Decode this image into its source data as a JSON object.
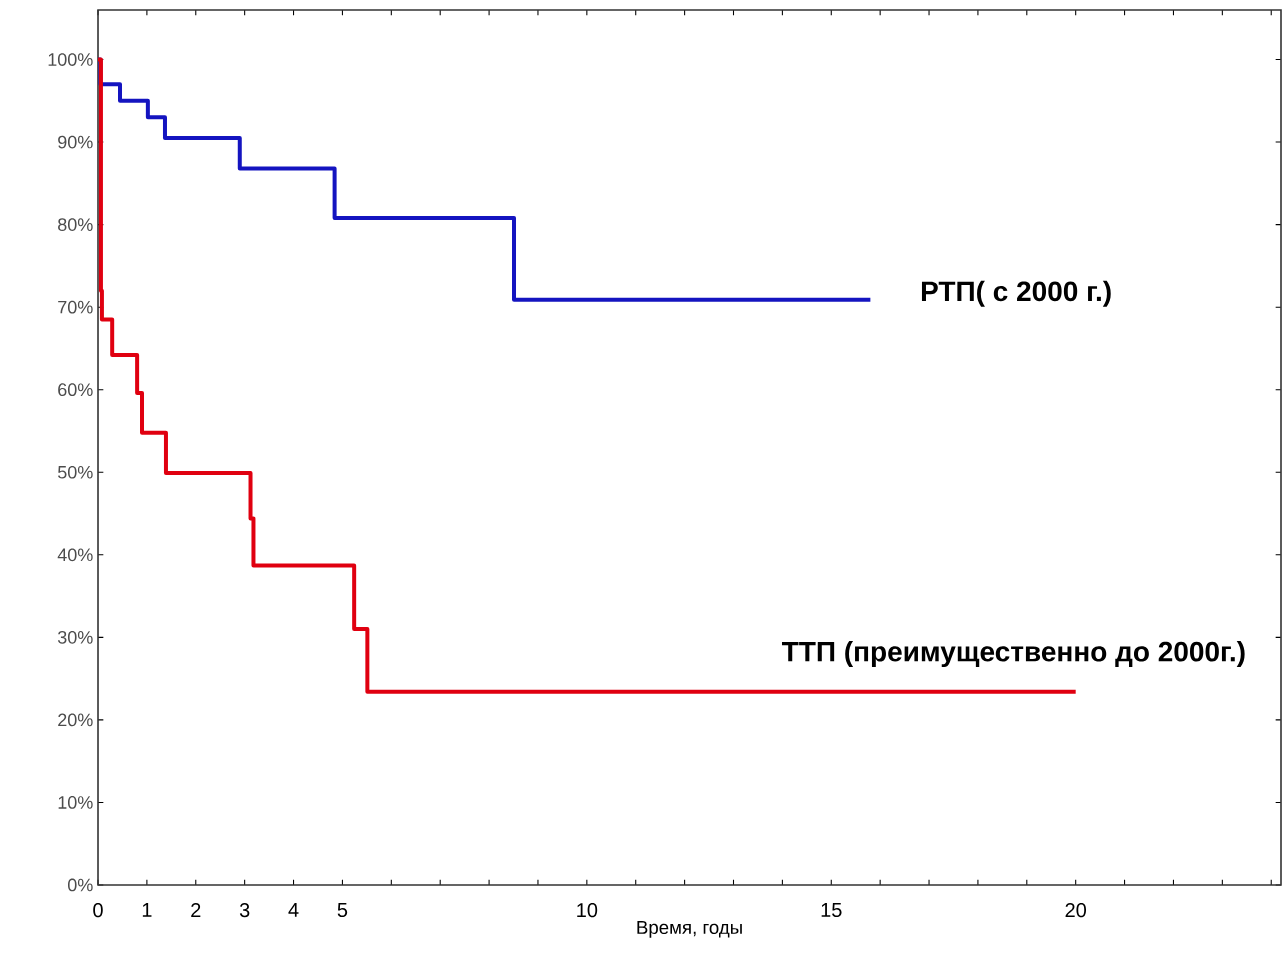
{
  "chart_data": {
    "type": "step",
    "xlabel": "Время, годы",
    "xlim": [
      0,
      24.2
    ],
    "ylim": [
      0,
      106
    ],
    "xticks": [
      0,
      1,
      2,
      3,
      4,
      5,
      {
        "value": 6,
        "label": null
      },
      {
        "value": 7,
        "label": null
      },
      {
        "value": 8,
        "label": null
      },
      {
        "value": 9,
        "label": null
      },
      10,
      {
        "value": 11,
        "label": null
      },
      {
        "value": 12,
        "label": null
      },
      {
        "value": 13,
        "label": null
      },
      {
        "value": 14,
        "label": null
      },
      15,
      {
        "value": 16,
        "label": null
      },
      {
        "value": 17,
        "label": null
      },
      {
        "value": 18,
        "label": null
      },
      {
        "value": 19,
        "label": null
      },
      20,
      {
        "value": 21,
        "label": null
      },
      {
        "value": 22,
        "label": null
      },
      {
        "value": 23,
        "label": null
      },
      {
        "value": 24,
        "label": null
      }
    ],
    "yticks": [
      {
        "value": 0,
        "label": "0%"
      },
      {
        "value": 10,
        "label": "10%"
      },
      {
        "value": 20,
        "label": "20%"
      },
      {
        "value": 30,
        "label": "30%"
      },
      {
        "value": 40,
        "label": "40%"
      },
      {
        "value": 50,
        "label": "50%"
      },
      {
        "value": 60,
        "label": "60%"
      },
      {
        "value": 70,
        "label": "70%"
      },
      {
        "value": 80,
        "label": "80%"
      },
      {
        "value": 90,
        "label": "90%"
      },
      {
        "value": 100,
        "label": "100%"
      }
    ],
    "series": [
      {
        "name": "РТП( с 2000 г.)",
        "color": "#1414c0",
        "x": [
          0,
          0.05,
          0.45,
          1.02,
          1.37,
          2.9,
          4.84,
          8.51,
          15.8
        ],
        "values": [
          100,
          97,
          95,
          93,
          90.5,
          86.8,
          80.8,
          70.9,
          70.9
        ]
      },
      {
        "name": "ТТП (преимущественно до 2000г.)",
        "color": "#e00010",
        "x": [
          0,
          0.06,
          0.08,
          0.29,
          0.8,
          0.9,
          1.39,
          3.12,
          3.18,
          5.24,
          5.51,
          20
        ],
        "values": [
          100,
          72,
          68.5,
          64.2,
          59.6,
          54.8,
          49.9,
          44.4,
          38.7,
          31.0,
          23.4,
          23.4
        ]
      }
    ],
    "legend": false,
    "grid": false
  }
}
